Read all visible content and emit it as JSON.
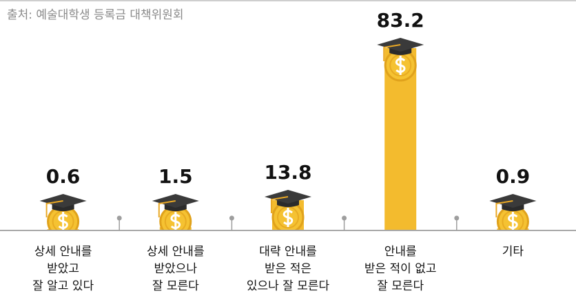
{
  "chart_data": {
    "type": "bar",
    "source": "출처: 예술대학생 등록금 대책위원회",
    "categories": [
      [
        "상세 안내를",
        "받았고",
        "잘 알고 있다"
      ],
      [
        "상세 안내를",
        "받았으나",
        "잘 모른다"
      ],
      [
        "대략 안내를",
        "받은 적은",
        "있으나 잘 모른다"
      ],
      [
        "안내를",
        "받은 적이 없고",
        "잘 모른다"
      ],
      [
        "기타"
      ]
    ],
    "values": [
      0.6,
      1.5,
      13.8,
      83.2,
      0.9
    ],
    "color": "#f3bb2e"
  }
}
